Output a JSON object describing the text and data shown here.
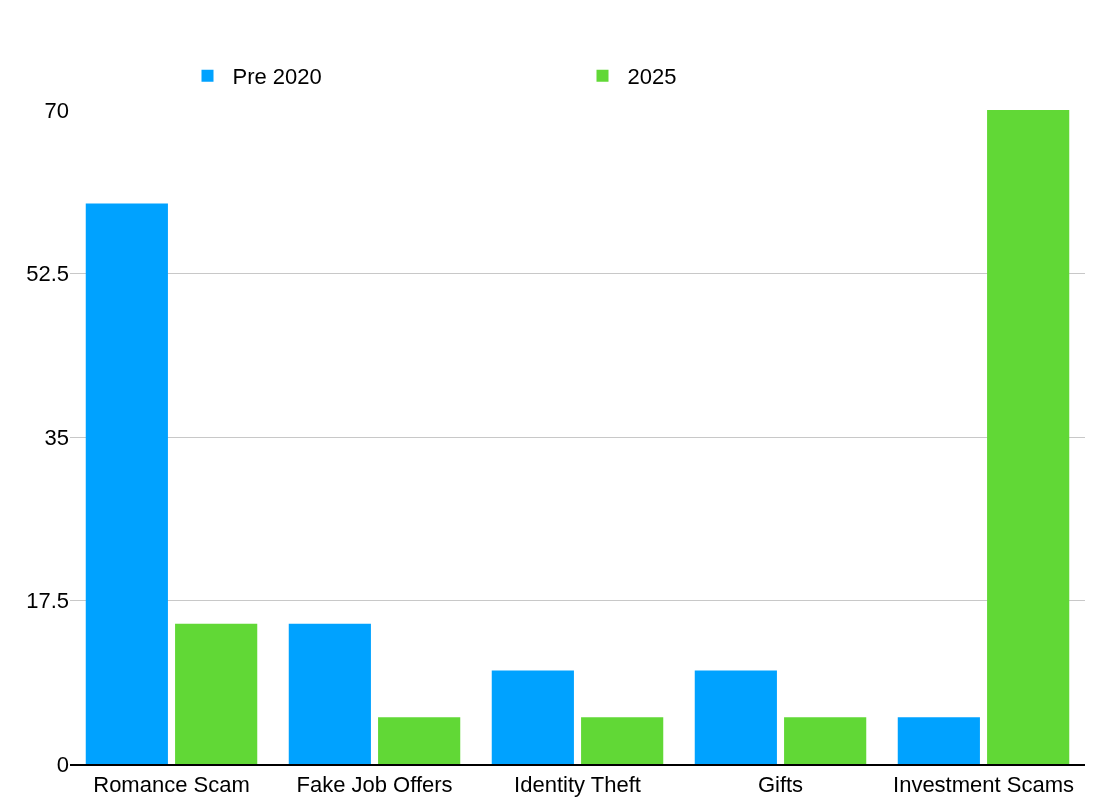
{
  "chart_data": {
    "type": "bar",
    "categories": [
      "Romance Scam",
      "Fake Job Offers",
      "Identity Theft",
      "Gifts",
      "Investment Scams"
    ],
    "series": [
      {
        "name": "Pre 2020",
        "color": "#00a2ff",
        "values": [
          60,
          15,
          10,
          10,
          5
        ]
      },
      {
        "name": "2025",
        "color": "#61d836",
        "values": [
          15,
          5,
          5,
          5,
          70
        ]
      }
    ],
    "ylim": [
      0,
      70
    ],
    "yticks": [
      0,
      17.5,
      35,
      52.5,
      70
    ],
    "grid": "y",
    "legend": "top"
  }
}
